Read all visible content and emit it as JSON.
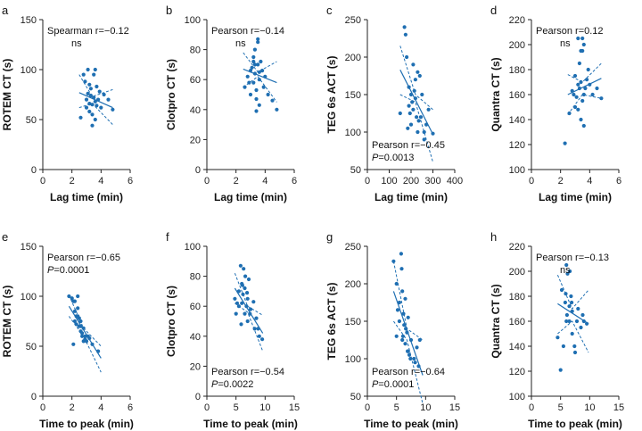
{
  "chart_data": [
    {
      "id": "a",
      "letter": "a",
      "type": "scatter",
      "xlabel": "Lag time (min)",
      "ylabel": "ROTEM CT (s)",
      "xlim": [
        0,
        6
      ],
      "ylim": [
        0,
        150
      ],
      "xticks": [
        0,
        2,
        4,
        6
      ],
      "yticks": [
        0,
        50,
        100,
        150
      ],
      "stat_lines": [
        "Spearman r=−0.12",
        "ns"
      ],
      "stat_pos": "top-left",
      "x": [
        2.6,
        2.8,
        3.0,
        3.0,
        3.1,
        3.2,
        3.2,
        3.3,
        3.3,
        3.4,
        3.4,
        3.5,
        3.5,
        3.6,
        3.6,
        3.7,
        3.8,
        3.9,
        4.0,
        4.2,
        4.5,
        4.8,
        3.2,
        3.6,
        3.4,
        2.9,
        3.1,
        3.7
      ],
      "y": [
        52,
        95,
        62,
        70,
        100,
        66,
        58,
        74,
        81,
        65,
        55,
        72,
        95,
        68,
        100,
        64,
        70,
        78,
        62,
        75,
        70,
        60,
        85,
        50,
        44,
        88,
        76,
        83
      ],
      "fit": [
        [
          2.5,
          77
        ],
        [
          4.8,
          62
        ]
      ],
      "ci_upper": [
        [
          2.5,
          95
        ],
        [
          3.4,
          73
        ],
        [
          4.8,
          80
        ]
      ],
      "ci_lower": [
        [
          2.5,
          62
        ],
        [
          3.4,
          66
        ],
        [
          4.8,
          45
        ]
      ]
    },
    {
      "id": "b",
      "letter": "b",
      "type": "scatter",
      "xlabel": "Lag time (min)",
      "ylabel": "Clotpro CT (s)",
      "xlim": [
        0,
        6
      ],
      "ylim": [
        0,
        100
      ],
      "xticks": [
        0,
        2,
        4,
        6
      ],
      "yticks": [
        0,
        20,
        40,
        60,
        80,
        100
      ],
      "stat_lines": [
        "Pearson r=−0.14",
        "ns"
      ],
      "stat_pos": "top-left",
      "x": [
        2.6,
        2.8,
        3.0,
        3.0,
        3.1,
        3.2,
        3.2,
        3.3,
        3.3,
        3.4,
        3.4,
        3.5,
        3.5,
        3.6,
        3.6,
        3.7,
        3.8,
        3.9,
        4.0,
        4.2,
        4.5,
        4.8,
        3.2,
        3.6,
        3.4,
        2.9,
        3.5,
        3.3
      ],
      "y": [
        55,
        62,
        50,
        66,
        68,
        72,
        58,
        64,
        70,
        47,
        53,
        85,
        87,
        60,
        43,
        72,
        66,
        55,
        62,
        50,
        46,
        40,
        75,
        65,
        39,
        58,
        70,
        80
      ],
      "fit": [
        [
          2.5,
          67
        ],
        [
          4.8,
          58
        ]
      ],
      "ci_upper": [
        [
          2.5,
          78
        ],
        [
          3.5,
          65
        ],
        [
          4.8,
          72
        ]
      ],
      "ci_lower": [
        [
          2.5,
          55
        ],
        [
          3.5,
          62
        ],
        [
          4.8,
          45
        ]
      ]
    },
    {
      "id": "c",
      "letter": "c",
      "type": "scatter",
      "xlabel": "Lag time (min)",
      "ylabel": "TEG 6s ACT (s)",
      "xlim": [
        0,
        400
      ],
      "ylim": [
        50,
        250
      ],
      "xticks": [
        0,
        100,
        200,
        300,
        400
      ],
      "yticks": [
        50,
        100,
        150,
        200,
        250
      ],
      "stat_lines": [
        "Pearson r=−0.45",
        "P=0.0013"
      ],
      "stat_pos": "bottom-left",
      "x": [
        150,
        170,
        175,
        180,
        190,
        190,
        200,
        200,
        210,
        210,
        220,
        220,
        225,
        230,
        235,
        240,
        250,
        260,
        270,
        280,
        185,
        195,
        215,
        205,
        230,
        245,
        260,
        300
      ],
      "y": [
        125,
        240,
        230,
        200,
        135,
        160,
        110,
        150,
        190,
        130,
        145,
        170,
        120,
        100,
        115,
        175,
        150,
        90,
        110,
        130,
        105,
        125,
        155,
        140,
        180,
        120,
        100,
        98
      ],
      "fit": [
        [
          150,
          183
        ],
        [
          300,
          97
        ]
      ],
      "ci_upper": [
        [
          150,
          215
        ],
        [
          220,
          150
        ],
        [
          300,
          130
        ]
      ],
      "ci_lower": [
        [
          150,
          150
        ],
        [
          220,
          140
        ],
        [
          300,
          60
        ]
      ]
    },
    {
      "id": "d",
      "letter": "d",
      "type": "scatter",
      "xlabel": "Lag time (min)",
      "ylabel": "Quantra CT (s)",
      "xlim": [
        0,
        6
      ],
      "ylim": [
        100,
        220
      ],
      "xticks": [
        0,
        2,
        4,
        6
      ],
      "yticks": [
        100,
        120,
        140,
        160,
        180,
        200,
        220
      ],
      "stat_lines": [
        "Pearson r=0.12",
        "ns"
      ],
      "stat_pos": "top-left",
      "x": [
        2.3,
        2.6,
        2.8,
        3.0,
        3.0,
        3.1,
        3.2,
        3.2,
        3.3,
        3.3,
        3.4,
        3.4,
        3.5,
        3.5,
        3.6,
        3.6,
        3.7,
        3.8,
        3.9,
        4.0,
        4.2,
        4.5,
        4.8,
        3.2,
        3.6,
        3.4,
        2.9,
        3.5
      ],
      "y": [
        121,
        145,
        163,
        150,
        175,
        158,
        168,
        205,
        165,
        185,
        140,
        170,
        195,
        155,
        200,
        160,
        165,
        172,
        180,
        168,
        160,
        165,
        157,
        148,
        135,
        195,
        160,
        205
      ],
      "fit": [
        [
          2.5,
          160
        ],
        [
          4.8,
          173
        ]
      ],
      "ci_upper": [
        [
          2.5,
          176
        ],
        [
          3.5,
          170
        ],
        [
          4.8,
          185
        ]
      ],
      "ci_lower": [
        [
          2.5,
          144
        ],
        [
          3.5,
          160
        ],
        [
          4.8,
          157
        ]
      ]
    },
    {
      "id": "e",
      "letter": "e",
      "type": "scatter",
      "xlabel": "Time to peak (min)",
      "ylabel": "ROTEM CT (s)",
      "xlim": [
        0,
        6
      ],
      "ylim": [
        0,
        150
      ],
      "xticks": [
        0,
        2,
        4,
        6
      ],
      "yticks": [
        0,
        50,
        100,
        150
      ],
      "stat_lines": [
        "Pearson r=−0.65",
        "P=0.0001"
      ],
      "stat_pos": "top-left",
      "x": [
        1.8,
        2.0,
        2.1,
        2.2,
        2.2,
        2.3,
        2.4,
        2.4,
        2.5,
        2.5,
        2.6,
        2.6,
        2.7,
        2.8,
        2.8,
        2.9,
        3.0,
        3.2,
        3.4,
        3.8,
        2.1,
        2.3,
        2.6,
        2.9,
        2.4,
        2.7,
        2.2,
        3.1
      ],
      "y": [
        100,
        98,
        95,
        85,
        75,
        72,
        100,
        80,
        70,
        78,
        65,
        75,
        60,
        55,
        68,
        60,
        55,
        58,
        52,
        45,
        52,
        80,
        70,
        57,
        88,
        63,
        95,
        60
      ],
      "fit": [
        [
          1.8,
          90
        ],
        [
          4.0,
          38
        ]
      ],
      "ci_upper": [
        [
          1.8,
          101
        ],
        [
          2.8,
          68
        ],
        [
          4.0,
          50
        ]
      ],
      "ci_lower": [
        [
          1.8,
          80
        ],
        [
          2.8,
          60
        ],
        [
          4.0,
          24
        ]
      ]
    },
    {
      "id": "f",
      "letter": "f",
      "type": "scatter",
      "xlabel": "Time to peak (min)",
      "ylabel": "Clotpro CT (s)",
      "xlim": [
        0,
        15
      ],
      "ylim": [
        0,
        100
      ],
      "xticks": [
        0,
        5,
        10,
        15
      ],
      "yticks": [
        0,
        20,
        40,
        60,
        80,
        100
      ],
      "stat_lines": [
        "Pearson r=−0.54",
        "P=0.0022"
      ],
      "stat_pos": "bottom-left",
      "x": [
        4.8,
        5.0,
        5.5,
        5.5,
        5.8,
        6.0,
        6.0,
        6.2,
        6.3,
        6.5,
        6.5,
        6.8,
        7.0,
        7.0,
        7.2,
        7.5,
        8.0,
        8.2,
        8.5,
        9.0,
        5.2,
        6.6,
        7.4,
        6.1,
        5.9,
        6.9,
        8.8,
        9.5
      ],
      "y": [
        65,
        55,
        70,
        60,
        87,
        75,
        62,
        68,
        85,
        55,
        72,
        60,
        65,
        50,
        78,
        58,
        63,
        45,
        52,
        40,
        62,
        80,
        55,
        74,
        48,
        69,
        45,
        38
      ],
      "fit": [
        [
          4.8,
          72
        ],
        [
          9.6,
          42
        ]
      ],
      "ci_upper": [
        [
          4.8,
          82
        ],
        [
          7.0,
          60
        ],
        [
          9.6,
          54
        ]
      ],
      "ci_lower": [
        [
          4.8,
          62
        ],
        [
          7.0,
          56
        ],
        [
          9.6,
          30
        ]
      ]
    },
    {
      "id": "g",
      "letter": "g",
      "type": "scatter",
      "xlabel": "Time to peak (min)",
      "ylabel": "TEG 6s ACT (s)",
      "xlim": [
        0,
        15
      ],
      "ylim": [
        50,
        250
      ],
      "xticks": [
        0,
        5,
        10,
        15
      ],
      "yticks": [
        50,
        100,
        150,
        200,
        250
      ],
      "stat_lines": [
        "Pearson r=−0.64",
        "P=0.0001"
      ],
      "stat_pos": "bottom-left",
      "x": [
        4.5,
        5.0,
        5.0,
        5.5,
        5.5,
        5.8,
        6.0,
        6.0,
        6.2,
        6.3,
        6.5,
        6.5,
        6.8,
        7.0,
        7.0,
        7.2,
        7.5,
        8.0,
        8.2,
        8.5,
        9.0,
        5.2,
        6.6,
        7.4,
        6.1,
        5.9,
        6.9,
        8.8
      ],
      "y": [
        230,
        200,
        130,
        175,
        150,
        240,
        190,
        125,
        160,
        145,
        180,
        120,
        135,
        110,
        155,
        105,
        125,
        100,
        95,
        115,
        125,
        165,
        140,
        100,
        130,
        220,
        110,
        90
      ],
      "fit": [
        [
          4.5,
          190
        ],
        [
          9.5,
          78
        ]
      ],
      "ci_upper": [
        [
          4.5,
          230
        ],
        [
          6.8,
          140
        ],
        [
          9.5,
          125
        ]
      ],
      "ci_lower": [
        [
          4.5,
          150
        ],
        [
          6.8,
          125
        ],
        [
          9.5,
          40
        ]
      ]
    },
    {
      "id": "h",
      "letter": "h",
      "type": "scatter",
      "xlabel": "Time to peak (min)",
      "ylabel": "Quantra CT (s)",
      "xlim": [
        0,
        15
      ],
      "ylim": [
        100,
        220
      ],
      "xticks": [
        0,
        5,
        10,
        15
      ],
      "yticks": [
        100,
        120,
        140,
        160,
        180,
        200,
        220
      ],
      "stat_lines": [
        "Pearson r=−0.13",
        "ns"
      ],
      "stat_pos": "top-left",
      "x": [
        4.5,
        5.0,
        5.5,
        5.8,
        6.0,
        6.0,
        6.2,
        6.5,
        6.5,
        6.8,
        7.0,
        7.0,
        7.5,
        7.8,
        8.0,
        8.5,
        9.0,
        5.2,
        6.6,
        7.4,
        6.1,
        5.9,
        6.9,
        8.8,
        9.5
      ],
      "y": [
        147,
        121,
        140,
        175,
        205,
        160,
        198,
        160,
        172,
        180,
        150,
        168,
        135,
        160,
        170,
        155,
        160,
        185,
        200,
        140,
        165,
        182,
        175,
        165,
        158
      ],
      "fit": [
        [
          4.5,
          174
        ],
        [
          9.8,
          158
        ]
      ],
      "ci_upper": [
        [
          4.5,
          197
        ],
        [
          7.0,
          170
        ],
        [
          9.8,
          185
        ]
      ],
      "ci_lower": [
        [
          4.5,
          150
        ],
        [
          7.0,
          160
        ],
        [
          9.8,
          135
        ]
      ]
    }
  ],
  "colors": {
    "point": "#1f6fb2",
    "line": "#1f6fb2",
    "axis": "#222222"
  }
}
